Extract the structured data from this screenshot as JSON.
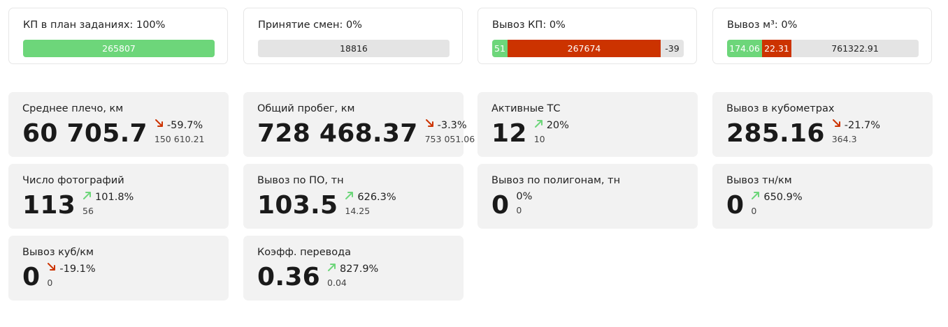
{
  "colors": {
    "green": "#6dd67a",
    "red": "#cc3300",
    "gray": "#e4e4e4",
    "card_bg": "#f2f2f2"
  },
  "progress_cards": [
    {
      "title": "КП в план заданиях: 100%",
      "segments": [
        {
          "label": "265807",
          "color": "green"
        }
      ]
    },
    {
      "title": "Принятие смен: 0%",
      "segments": [
        {
          "label": "18816",
          "color": "gray"
        }
      ]
    },
    {
      "title": "Вывоз КП: 0%",
      "segments": [
        {
          "label": "51",
          "color": "green"
        },
        {
          "label": "267674",
          "color": "red"
        },
        {
          "label": "-39",
          "color": "gray"
        }
      ]
    },
    {
      "title": "Вывоз м³: 0%",
      "segments": [
        {
          "label": "174.06",
          "color": "green"
        },
        {
          "label": "22.31",
          "color": "red"
        },
        {
          "label": "761322.91",
          "color": "gray"
        }
      ]
    }
  ],
  "metrics": [
    {
      "title": "Среднее плечо, км",
      "value": "60 705.7",
      "change": "-59.7%",
      "trend": "down",
      "previous": "150 610.21"
    },
    {
      "title": "Общий пробег, км",
      "value": "728 468.37",
      "change": "-3.3%",
      "trend": "down",
      "previous": "753 051.06"
    },
    {
      "title": "Активные ТС",
      "value": "12",
      "change": "20%",
      "trend": "up",
      "previous": "10"
    },
    {
      "title": "Вывоз в кубометрах",
      "value": "285.16",
      "change": "-21.7%",
      "trend": "down",
      "previous": "364.3"
    },
    {
      "title": "Число фотографий",
      "value": "113",
      "change": "101.8%",
      "trend": "up",
      "previous": "56"
    },
    {
      "title": "Вывоз по ПО, тн",
      "value": "103.5",
      "change": "626.3%",
      "trend": "up",
      "previous": "14.25"
    },
    {
      "title": "Вывоз по полигонам, тн",
      "value": "0",
      "change": "0%",
      "trend": "none",
      "previous": "0"
    },
    {
      "title": "Вывоз тн/км",
      "value": "0",
      "change": "650.9%",
      "trend": "up",
      "previous": "0"
    },
    {
      "title": "Вывоз куб/км",
      "value": "0",
      "change": "-19.1%",
      "trend": "down",
      "previous": "0"
    },
    {
      "title": "Коэфф. перевода",
      "value": "0.36",
      "change": "827.9%",
      "trend": "up",
      "previous": "0.04"
    }
  ]
}
